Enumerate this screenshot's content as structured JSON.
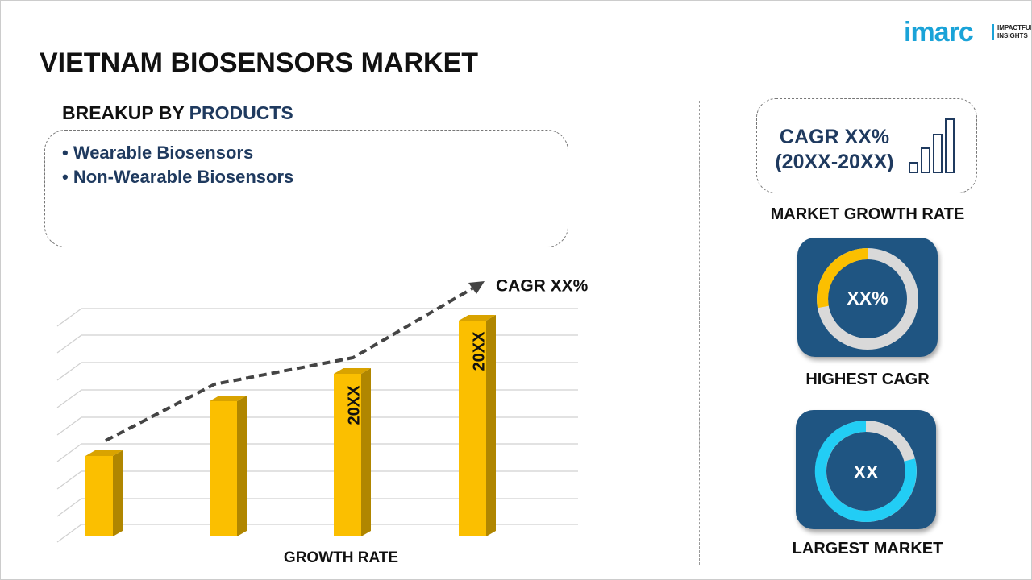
{
  "logo": {
    "name": "imarc",
    "tagline": [
      "IMPACTFUL",
      "INSIGHTS"
    ]
  },
  "title": "VIETNAM BIOSENSORS MARKET",
  "breakup": {
    "label": "BREAKUP BY",
    "highlight": "PRODUCTS",
    "items": [
      "Wearable Biosensors",
      "Non-Wearable Biosensors"
    ]
  },
  "growth_chart": {
    "bar_labels": [
      "20XX",
      "20XX"
    ],
    "trend_label": "CAGR XX%",
    "axis_label": "GROWTH RATE"
  },
  "cagr_box": {
    "line1": "CAGR XX%",
    "line2": "(20XX-20XX)",
    "caption": "MARKET GROWTH RATE"
  },
  "highest_cagr": {
    "value": "XX%",
    "caption": "HIGHEST CAGR"
  },
  "largest_market": {
    "value": "XX",
    "caption": "LARGEST MARKET"
  }
}
